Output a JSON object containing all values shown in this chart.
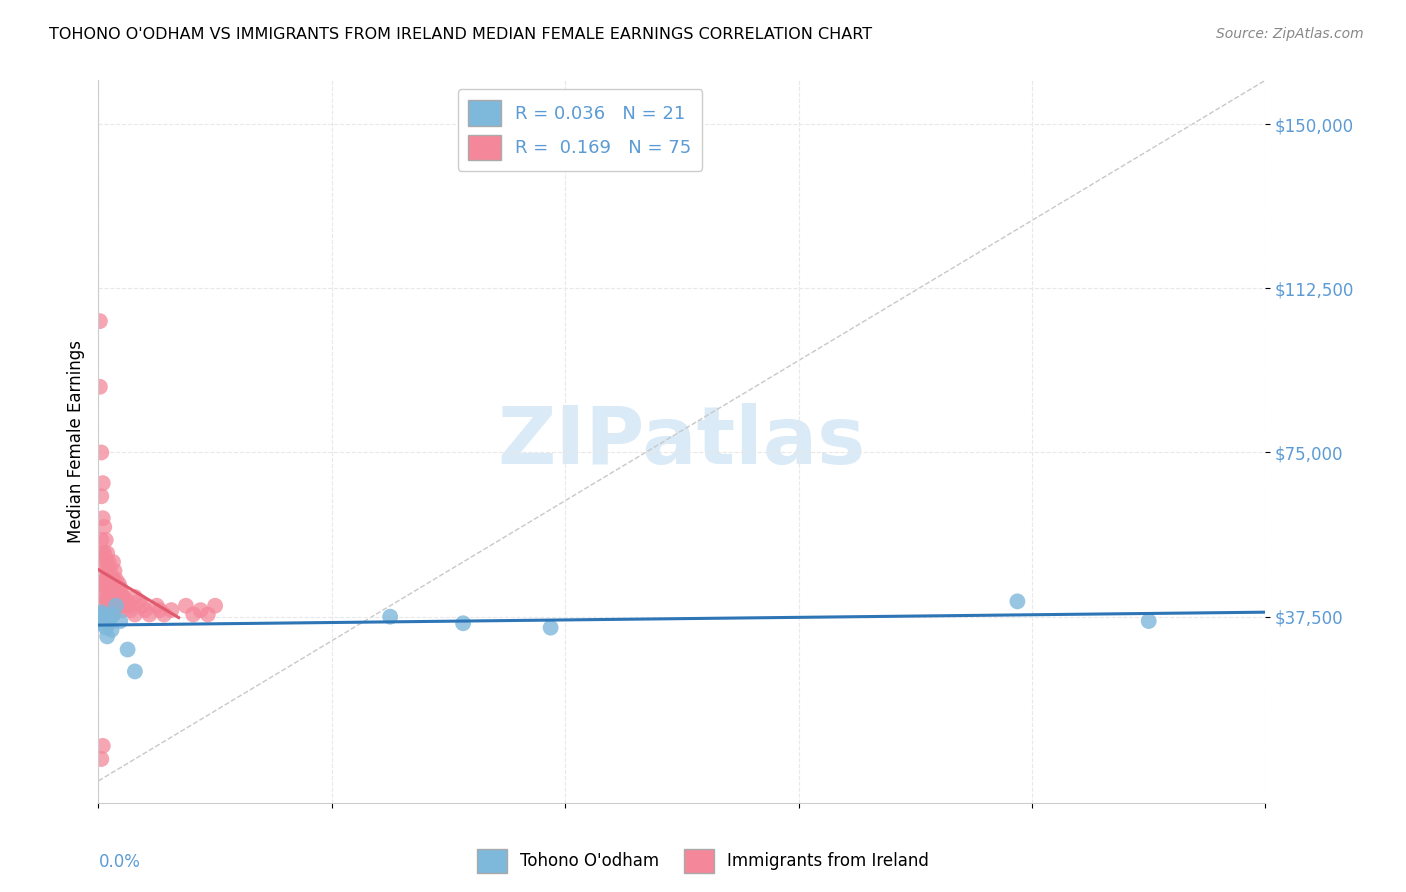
{
  "title": "TOHONO O'ODHAM VS IMMIGRANTS FROM IRELAND MEDIAN FEMALE EARNINGS CORRELATION CHART",
  "source": "Source: ZipAtlas.com",
  "ylabel": "Median Female Earnings",
  "x_min": 0.0,
  "x_max": 0.8,
  "y_min": -5000,
  "y_max": 160000,
  "y_ticks": [
    37500,
    75000,
    112500,
    150000
  ],
  "series1_color": "#7eb8db",
  "series1_edge": "#5b9bd5",
  "series2_color": "#f4879a",
  "series2_edge": "#e05a6e",
  "trendline1_color": "#2e75b6",
  "trendline2_color": "#e05a6e",
  "diag_line_color": "#c8c8c8",
  "watermark_color": "#daeaf7",
  "background_color": "#ffffff",
  "grid_color": "#e8e8e8",
  "series1_R": 0.036,
  "series1_N": 21,
  "series2_R": 0.169,
  "series2_N": 75,
  "legend1_label": "R = 0.036   N = 21",
  "legend2_label": "R =  0.169   N = 75",
  "bottom_legend1": "Tohono O'odham",
  "bottom_legend2": "Immigrants from Ireland",
  "s1_x": [
    0.001,
    0.002,
    0.002,
    0.003,
    0.004,
    0.005,
    0.005,
    0.006,
    0.007,
    0.008,
    0.009,
    0.01,
    0.012,
    0.015,
    0.02,
    0.2,
    0.25,
    0.31,
    0.63,
    0.72,
    0.025
  ],
  "s1_y": [
    37500,
    36000,
    38500,
    37000,
    38000,
    35000,
    37500,
    33000,
    36000,
    37000,
    34500,
    38000,
    40000,
    36500,
    30000,
    37500,
    36000,
    35000,
    41000,
    36500,
    25000
  ],
  "s2_x": [
    0.001,
    0.001,
    0.001,
    0.002,
    0.002,
    0.002,
    0.002,
    0.002,
    0.002,
    0.003,
    0.003,
    0.003,
    0.003,
    0.004,
    0.004,
    0.004,
    0.004,
    0.004,
    0.005,
    0.005,
    0.005,
    0.005,
    0.005,
    0.006,
    0.006,
    0.006,
    0.006,
    0.007,
    0.007,
    0.007,
    0.007,
    0.008,
    0.008,
    0.008,
    0.009,
    0.009,
    0.01,
    0.01,
    0.01,
    0.01,
    0.011,
    0.011,
    0.012,
    0.012,
    0.013,
    0.013,
    0.014,
    0.014,
    0.015,
    0.015,
    0.016,
    0.016,
    0.017,
    0.018,
    0.019,
    0.02,
    0.021,
    0.022,
    0.025,
    0.025,
    0.028,
    0.03,
    0.032,
    0.035,
    0.04,
    0.042,
    0.045,
    0.05,
    0.06,
    0.065,
    0.07,
    0.075,
    0.08,
    0.002,
    0.003
  ],
  "s2_y": [
    105000,
    90000,
    45000,
    75000,
    65000,
    55000,
    50000,
    45000,
    40000,
    68000,
    60000,
    52000,
    45000,
    58000,
    52000,
    47000,
    42000,
    38000,
    55000,
    50000,
    46000,
    42000,
    38000,
    52000,
    48000,
    44000,
    40000,
    50000,
    46000,
    42000,
    38000,
    48000,
    44000,
    40000,
    46000,
    42000,
    50000,
    46000,
    42000,
    38000,
    48000,
    44000,
    46000,
    42000,
    44000,
    40000,
    45000,
    41000,
    44000,
    40000,
    43000,
    39000,
    42000,
    41000,
    40000,
    41000,
    40000,
    39000,
    42000,
    38000,
    41000,
    40000,
    39000,
    38000,
    40000,
    39000,
    38000,
    39000,
    40000,
    38000,
    39000,
    38000,
    40000,
    5000,
    8000
  ]
}
